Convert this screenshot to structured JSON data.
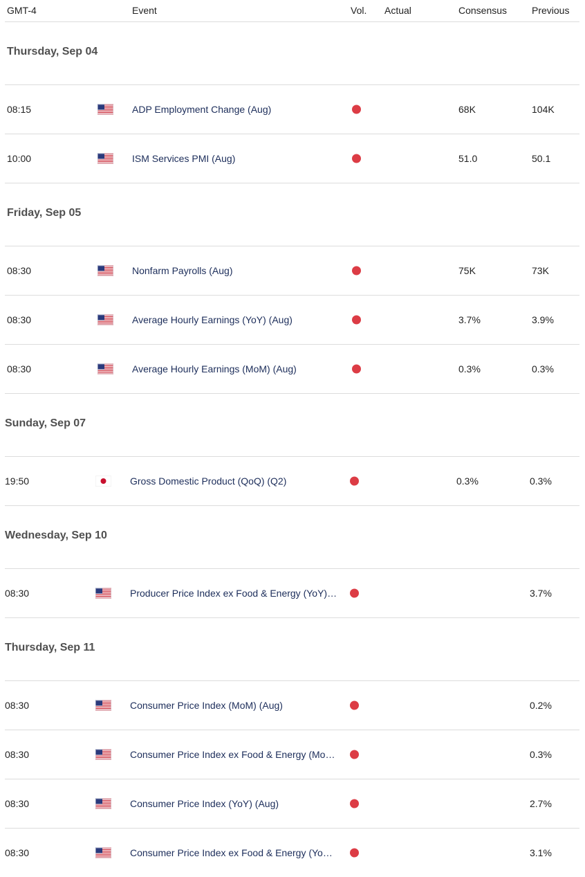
{
  "header": {
    "time_zone": "GMT-4",
    "event": "Event",
    "volatility": "Vol.",
    "actual": "Actual",
    "consensus": "Consensus",
    "previous": "Previous"
  },
  "days": [
    {
      "date": "Thursday, Sep 04",
      "events": [
        {
          "time": "08:15",
          "event": "ADP Employment Change (Aug)",
          "consensus": "68K",
          "previous": "104K"
        },
        {
          "time": "10:00",
          "event": "ISM Services PMI (Aug)",
          "consensus": "51.0",
          "previous": "50.1"
        }
      ]
    },
    {
      "date": "Friday, Sep 05",
      "events": [
        {
          "time": "08:30",
          "event": "Nonfarm Payrolls (Aug)",
          "consensus": "75K",
          "previous": "73K"
        },
        {
          "time": "08:30",
          "event": "Average Hourly Earnings (YoY) (Aug)",
          "consensus": "3.7%",
          "previous": "3.9%"
        },
        {
          "time": "08:30",
          "event": "Average Hourly Earnings (MoM) (Aug)",
          "consensus": "0.3%",
          "previous": "0.3%"
        }
      ]
    },
    {
      "date": "Sunday, Sep 07",
      "events": [
        {
          "time": "19:50",
          "event": "Gross Domestic Product (QoQ) (Q2)",
          "consensus": "0.3%",
          "previous": "0.3%"
        }
      ]
    },
    {
      "date": "Wednesday, Sep 10",
      "events": [
        {
          "time": "08:30",
          "event": "Producer Price Index ex Food & Energy (YoY)…",
          "previous": "3.7%"
        }
      ]
    },
    {
      "date": "Thursday, Sep 11",
      "events": [
        {
          "time": "08:30",
          "event": "Consumer Price Index (MoM) (Aug)",
          "previous": "0.2%"
        },
        {
          "time": "08:30",
          "event": "Consumer Price Index ex Food & Energy (Mo…",
          "previous": "0.3%"
        },
        {
          "time": "08:30",
          "event": "Consumer Price Index (YoY) (Aug)",
          "previous": "2.7%"
        },
        {
          "time": "08:30",
          "event": "Consumer Price Index ex Food & Energy (Yo…",
          "previous": "3.1%"
        }
      ]
    }
  ]
}
